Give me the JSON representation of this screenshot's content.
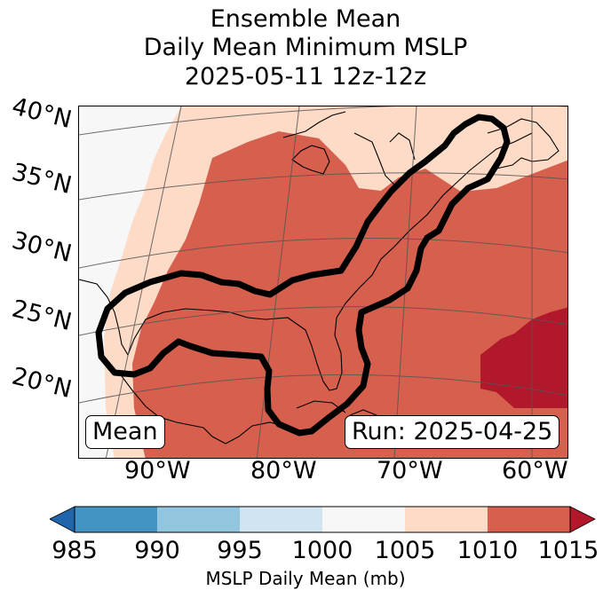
{
  "title": {
    "line1": "Ensemble Mean",
    "line2": "Daily Mean Minimum MSLP",
    "line3": "2025-05-11 12z-12z"
  },
  "map": {
    "lat_labels": [
      "40°N",
      "35°N",
      "30°N",
      "25°N",
      "20°N"
    ],
    "lon_labels": [
      "90°W",
      "80°W",
      "70°W",
      "60°W"
    ],
    "box_left": "Mean",
    "box_right": "Run: 2025-04-25"
  },
  "colorbar": {
    "label": "MSLP Daily Mean (mb)",
    "ticks": [
      "985",
      "990",
      "995",
      "1000",
      "1005",
      "1010",
      "1015"
    ],
    "colors": {
      "below": "#2166ac",
      "985_990": "#4393c3",
      "990_995": "#92c5de",
      "995_1000": "#d1e5f0",
      "1000_1005": "#f7f7f7",
      "1005_1010": "#fddbc7",
      "1010_1015": "#d6604d",
      "above": "#b2182b"
    }
  }
}
